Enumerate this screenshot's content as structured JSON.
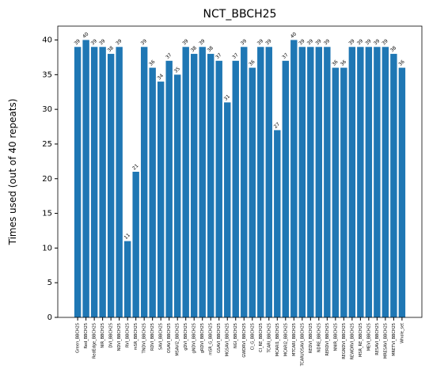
{
  "chart_data": {
    "type": "bar",
    "title": "NCT_BBCH25",
    "ylabel": "Times used (out of 40 repeats)",
    "categories": [
      "Green_BBCH25",
      "Red_BBCH25",
      "RedEdge_BBCH25",
      "NIR_BBCH25",
      "DVI_BBCH25",
      "NDVI_BBCH25",
      "RVI_BBCH25",
      "mSR_BBCH25",
      "TNDVI_BBCH25",
      "RDVI_BBCH25",
      "SAVI_BBCH25",
      "OSAVI_BBCH25",
      "MSAVI2_BBCH25",
      "gDVI_BBCH25",
      "gNDVI_BBCH25",
      "gRDVI_BBCH25",
      "mSR_G_BBCH25",
      "GSAVI_BBCH25",
      "MGSAVI_BBCH25",
      "NGI_BBCH25",
      "GWDRVI_BBCH25",
      "CI_G_BBCH25",
      "CI_RE_BBCH25",
      "TCARI_BBCH25",
      "MCARI1_BBCH25",
      "MCARI2_BBCH25",
      "MTCARI_BBCH25",
      "TCARI/OSAVI_BBCH25",
      "REDVI_BBCH25",
      "NDRE_BBCH25",
      "RERDVI_BBCH25",
      "NNIR_BBCH25",
      "REGNDVI_BBCH25",
      "REWDRVI_BBCH25",
      "MSR_RE_BBCH25",
      "MEVI_BBCH25",
      "RESAVI_BBCH25",
      "MRESAVI_BBCH25",
      "MRETVI_BBCH25",
      "Whole_set"
    ],
    "values": [
      39,
      40,
      39,
      39,
      38,
      39,
      11,
      21,
      39,
      36,
      34,
      37,
      35,
      39,
      38,
      39,
      38,
      37,
      31,
      37,
      39,
      36,
      39,
      39,
      27,
      37,
      40,
      39,
      39,
      39,
      39,
      36,
      36,
      39,
      39,
      39,
      39,
      39,
      38,
      36
    ],
    "color": "#1f77b4",
    "ylim": [
      0,
      42
    ],
    "yticks": [
      0,
      5,
      10,
      15,
      20,
      25,
      30,
      35,
      40
    ]
  }
}
